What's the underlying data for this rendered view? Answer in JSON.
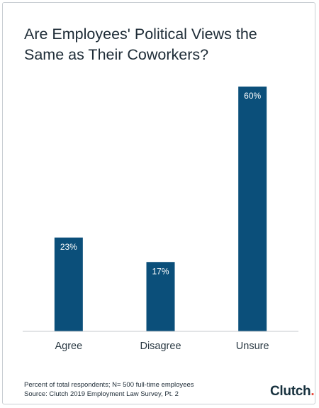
{
  "title": "Are Employees' Political Views the Same as Their Coworkers?",
  "footnote": {
    "line1": "Percent of total respondents; N= 500 full-time employees",
    "line2": "Source: Clutch 2019 Employment Law Survey, Pt. 2"
  },
  "logo": {
    "text": "Clutch",
    "dot": "."
  },
  "colors": {
    "bar": "#0b4f7a",
    "axis": "#c4c9cd",
    "label_text": "#ffffff",
    "tick_text": "#2b3a44"
  },
  "chart_data": {
    "type": "bar",
    "title": "Are Employees' Political Views the Same as Their Coworkers?",
    "categories": [
      "Agree",
      "Disagree",
      "Unsure"
    ],
    "values": [
      23,
      17,
      60
    ],
    "value_labels": [
      "23%",
      "17%",
      "60%"
    ],
    "unit": "%",
    "ylim": [
      0,
      60
    ],
    "xlabel": "",
    "ylabel": "",
    "grid": false,
    "legend": "none"
  }
}
